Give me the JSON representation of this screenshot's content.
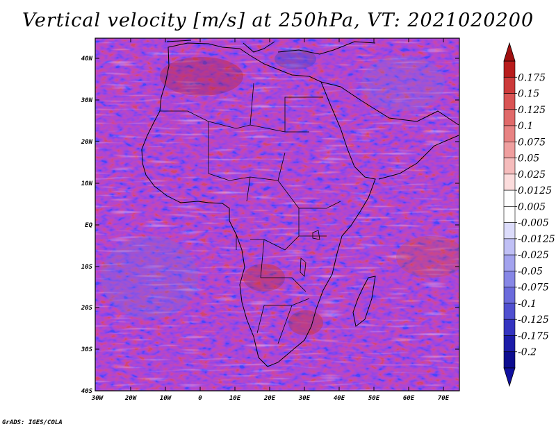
{
  "map": {
    "title": "Vertical velocity [m/s] at 250hPa, VT: 2021020200",
    "variable": "Vertical velocity",
    "units": "m/s",
    "level": "250hPa",
    "valid_time": "2021020200",
    "region": "Africa",
    "lat_ticks": [
      "40N",
      "30N",
      "20N",
      "10N",
      "EQ",
      "10S",
      "20S",
      "30S",
      "40S"
    ],
    "lon_ticks": [
      "30W",
      "20W",
      "10W",
      "0",
      "10E",
      "20E",
      "30E",
      "40E",
      "50E",
      "60E",
      "70E"
    ],
    "colorbar": {
      "labels": [
        "0.175",
        "0.15",
        "0.125",
        "0.1",
        "0.075",
        "0.05",
        "0.025",
        "0.0125",
        "0.005",
        "-0.005",
        "-0.0125",
        "-0.025",
        "-0.05",
        "-0.075",
        "-0.1",
        "-0.125",
        "-0.175",
        "-0.2"
      ],
      "colors": [
        "#b81c1c",
        "#cc3a3a",
        "#d95454",
        "#e06a6a",
        "#e88383",
        "#ef9f9f",
        "#f5bcbc",
        "#fbdcdc",
        "#ffffff",
        "#ffffff",
        "#dcdcfb",
        "#c0c0f5",
        "#a3a3ee",
        "#8787e6",
        "#6b6bdc",
        "#5050d0",
        "#3434c0",
        "#1c1ca8",
        "#0d0d90"
      ],
      "top_arrow_color": "#a01010",
      "bottom_arrow_color": "#1010a0"
    },
    "credit": "GrADS: IGES/COLA"
  }
}
